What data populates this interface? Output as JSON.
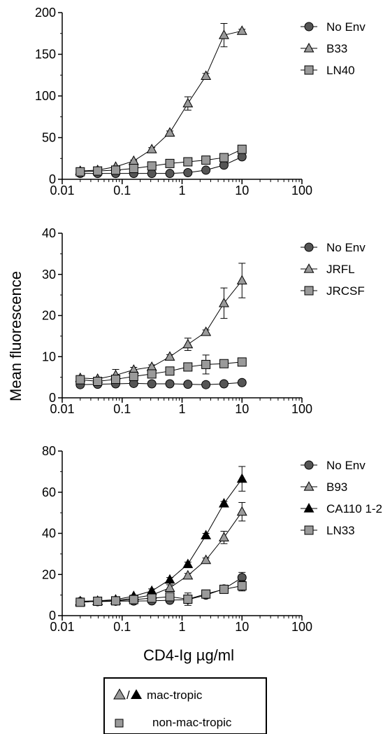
{
  "figure": {
    "ylabel": "Mean fluorescence",
    "xlabel": "CD4-Ig µg/ml"
  },
  "key": {
    "row1_label": "mac-tropic",
    "row1_separator": "/",
    "row2_label": "non-mac-tropic"
  },
  "colors": {
    "gray_fill": "#9a9a9a",
    "dark_fill": "#555555",
    "black_fill": "#000000",
    "line": "#000000"
  },
  "chart_data": [
    {
      "type": "scatter",
      "xscale": "log",
      "xlim": [
        0.01,
        100
      ],
      "ylim": [
        0,
        200
      ],
      "x_ticks": [
        "0.01",
        "0.1",
        "1",
        "10",
        "100"
      ],
      "y_ticks": [
        "0",
        "50",
        "100",
        "150",
        "200"
      ],
      "legend_position": "top-right",
      "x": [
        0.02,
        0.039,
        0.078,
        0.156,
        0.3125,
        0.625,
        1.25,
        2.5,
        5,
        10
      ],
      "series": [
        {
          "name": "No Env",
          "marker": "circle",
          "color": "dark_fill",
          "values": [
            7,
            7,
            7,
            7,
            7,
            7,
            8,
            11,
            17,
            27
          ],
          "errors": [
            0,
            0,
            0,
            0,
            0,
            0,
            0,
            1,
            2,
            2
          ]
        },
        {
          "name": "B33",
          "marker": "triangle",
          "color": "gray_fill",
          "values": [
            10,
            11,
            15,
            22,
            36,
            56,
            91,
            124,
            173,
            178
          ],
          "errors": [
            0,
            0,
            0,
            1,
            2,
            2,
            8,
            3,
            14,
            2
          ]
        },
        {
          "name": "LN40",
          "marker": "square",
          "color": "gray_fill",
          "values": [
            9,
            10,
            11,
            13,
            16,
            19,
            21,
            23,
            26,
            36
          ],
          "errors": [
            0,
            0,
            0,
            1,
            1,
            1,
            1,
            2,
            2,
            4
          ]
        }
      ]
    },
    {
      "type": "scatter",
      "xscale": "log",
      "xlim": [
        0.01,
        100
      ],
      "ylim": [
        0,
        40
      ],
      "x_ticks": [
        "0.01",
        "0.1",
        "1",
        "10",
        "100"
      ],
      "y_ticks": [
        "0",
        "10",
        "20",
        "30",
        "40"
      ],
      "legend_position": "top-right",
      "x": [
        0.02,
        0.039,
        0.078,
        0.156,
        0.3125,
        0.625,
        1.25,
        2.5,
        5,
        10
      ],
      "series": [
        {
          "name": "No Env",
          "marker": "circle",
          "color": "dark_fill",
          "values": [
            3.2,
            3.3,
            3.4,
            3.5,
            3.4,
            3.4,
            3.3,
            3.2,
            3.4,
            3.7
          ],
          "errors": [
            0,
            0,
            0,
            0,
            0,
            0,
            0,
            0,
            0,
            0.3
          ]
        },
        {
          "name": "JRFL",
          "marker": "triangle",
          "color": "gray_fill",
          "values": [
            4.8,
            4.6,
            5.5,
            6.8,
            7.5,
            10,
            13,
            16,
            23,
            28.5
          ],
          "errors": [
            0,
            0,
            1.4,
            0.6,
            0.5,
            0.5,
            1.5,
            0.5,
            3.7,
            4.2
          ]
        },
        {
          "name": "JRCSF",
          "marker": "square",
          "color": "gray_fill",
          "values": [
            4.4,
            4.0,
            4.5,
            5.2,
            5.8,
            6.5,
            7.5,
            8.1,
            8.3,
            8.7
          ],
          "errors": [
            0,
            0,
            0.4,
            0.5,
            0.3,
            0.3,
            0.5,
            2.3,
            0.5,
            0.4
          ]
        }
      ]
    },
    {
      "type": "scatter",
      "xscale": "log",
      "xlim": [
        0.01,
        100
      ],
      "ylim": [
        0,
        80
      ],
      "x_ticks": [
        "0.01",
        "0.1",
        "1",
        "10",
        "100"
      ],
      "y_ticks": [
        "0",
        "20",
        "40",
        "60",
        "80"
      ],
      "legend_position": "top-right",
      "x": [
        0.02,
        0.039,
        0.078,
        0.156,
        0.3125,
        0.625,
        1.25,
        2.5,
        5,
        10
      ],
      "series": [
        {
          "name": "No Env",
          "marker": "circle",
          "color": "dark_fill",
          "values": [
            6.8,
            6.8,
            7.0,
            7.1,
            7.2,
            7.5,
            7.8,
            10,
            13,
            18.5
          ],
          "errors": [
            0,
            0,
            0,
            0,
            0,
            0,
            0,
            0,
            0,
            2.5
          ]
        },
        {
          "name": "B93",
          "marker": "triangle",
          "color": "gray_fill",
          "values": [
            6.5,
            7.0,
            7.3,
            8.5,
            10,
            13.5,
            19.5,
            27,
            38,
            50.5
          ],
          "errors": [
            0,
            0,
            0,
            0.5,
            1,
            1.5,
            1,
            1,
            3,
            4.5
          ]
        },
        {
          "name": "CA110 1-2",
          "marker": "triangle",
          "color": "black_fill",
          "values": [
            7.0,
            7.2,
            7.8,
            9.5,
            12,
            17.5,
            25,
            39,
            54.5,
            66.5
          ],
          "errors": [
            0,
            0,
            0,
            0.5,
            1,
            1,
            1,
            1,
            1,
            6
          ]
        },
        {
          "name": "LN33",
          "marker": "square",
          "color": "gray_fill",
          "values": [
            6.5,
            7.0,
            7.2,
            7.8,
            8.5,
            9.2,
            8.0,
            10.5,
            12.8,
            14.5
          ],
          "errors": [
            0,
            0,
            0,
            0.5,
            1,
            1,
            3,
            0.5,
            0.5,
            2.5
          ]
        }
      ]
    }
  ]
}
